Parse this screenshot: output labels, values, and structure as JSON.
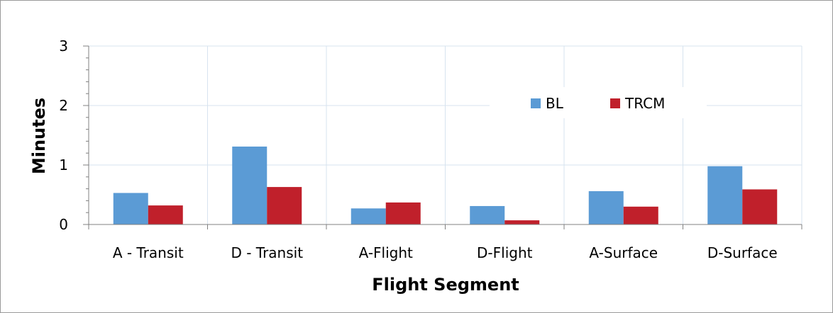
{
  "chart_data": {
    "type": "bar",
    "title": "",
    "xlabel": "Flight Segment",
    "ylabel": "Minutes",
    "ylim": [
      0,
      3
    ],
    "yticks": [
      "0",
      "1",
      "2",
      "3"
    ],
    "grid": true,
    "legend_position": "top-right",
    "categories": [
      "A - Transit",
      "D - Transit",
      "A-Flight",
      "D-Flight",
      "A-Surface",
      "D-Surface"
    ],
    "series": [
      {
        "name": "BL",
        "color": "#5b9bd5",
        "values": [
          0.53,
          1.31,
          0.27,
          0.31,
          0.56,
          0.98
        ]
      },
      {
        "name": "TRCM",
        "color": "#c0202b",
        "values": [
          0.32,
          0.63,
          0.37,
          0.07,
          0.3,
          0.59
        ]
      }
    ]
  }
}
